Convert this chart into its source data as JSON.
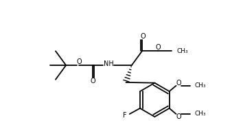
{
  "background": "#ffffff",
  "line_color": "#000000",
  "line_width": 1.3,
  "font_size": 7.0,
  "fig_width": 3.54,
  "fig_height": 1.98,
  "dpi": 100,
  "xlim": [
    0,
    354
  ],
  "ylim": [
    0,
    198
  ]
}
